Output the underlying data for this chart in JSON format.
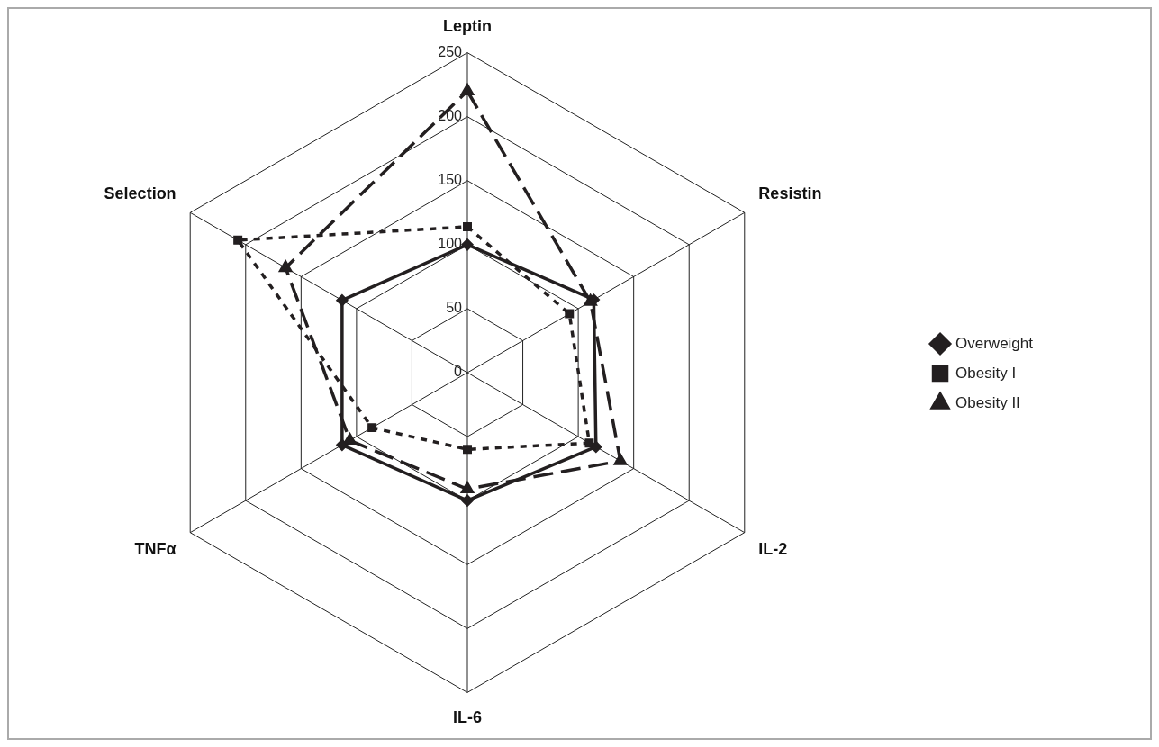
{
  "chart_data": {
    "type": "radar",
    "categories": [
      "Leptin",
      "Resistin",
      "IL-2",
      "IL-6",
      "TNFα",
      "Selection"
    ],
    "series": [
      {
        "name": "Overweight",
        "color": "#231f20",
        "values": [
          100,
          114,
          116,
          100,
          113,
          113
        ],
        "marker": "diamond",
        "line_style": "solid"
      },
      {
        "name": "Obesity I",
        "color": "#231f20",
        "values": [
          114,
          92,
          110,
          60,
          86,
          207
        ],
        "marker": "square",
        "line_style": "dotted"
      },
      {
        "name": "Obesity II",
        "color": "#231f20",
        "values": [
          220,
          111,
          138,
          91,
          106,
          164
        ],
        "marker": "triangle",
        "line_style": "dashed"
      }
    ],
    "ylim": [
      0,
      250
    ],
    "yticks": [
      0,
      50,
      100,
      150,
      200,
      250
    ],
    "grid": true,
    "legend": "right"
  }
}
